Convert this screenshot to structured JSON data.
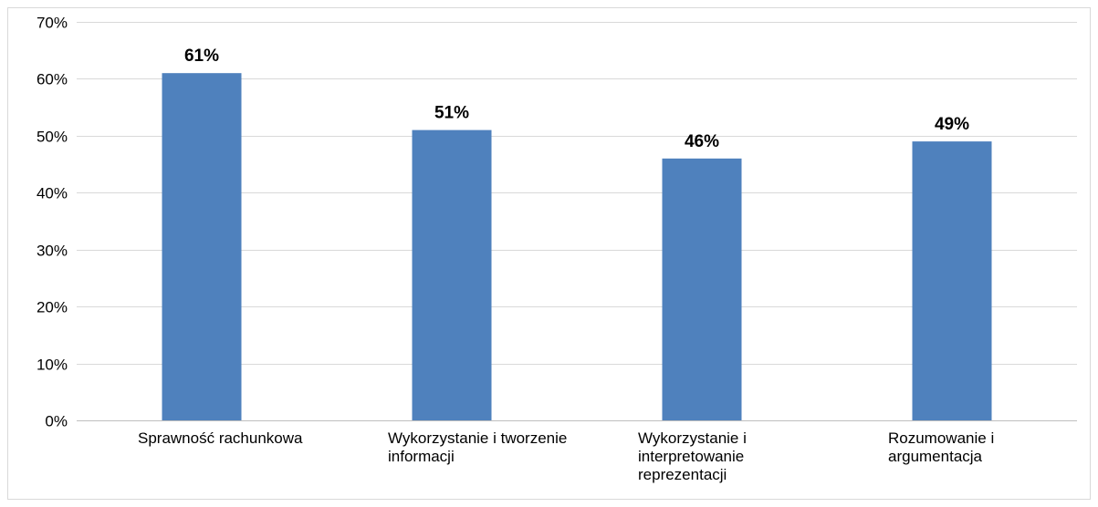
{
  "chart_data": {
    "type": "bar",
    "categories": [
      [
        "Sprawność rachunkowa"
      ],
      [
        "Wykorzystanie i tworzenie",
        "informacji"
      ],
      [
        "Wykorzystanie i",
        "interpretowanie",
        "reprezentacji"
      ],
      [
        "Rozumowanie i",
        "argumentacja"
      ]
    ],
    "values": [
      61,
      51,
      46,
      49
    ],
    "data_labels": [
      "61%",
      "51%",
      "46%",
      "49%"
    ],
    "title": "",
    "xlabel": "",
    "ylabel": "",
    "ylim": [
      0,
      70
    ],
    "yticks": [
      "0%",
      "10%",
      "20%",
      "30%",
      "40%",
      "50%",
      "60%",
      "70%"
    ],
    "grid": true,
    "legend": "none",
    "colors": {
      "bar": "#4f81bd",
      "grid": "#d9d9d9",
      "axis": "#bfbfbf",
      "frame": "#d9d9d9"
    }
  }
}
